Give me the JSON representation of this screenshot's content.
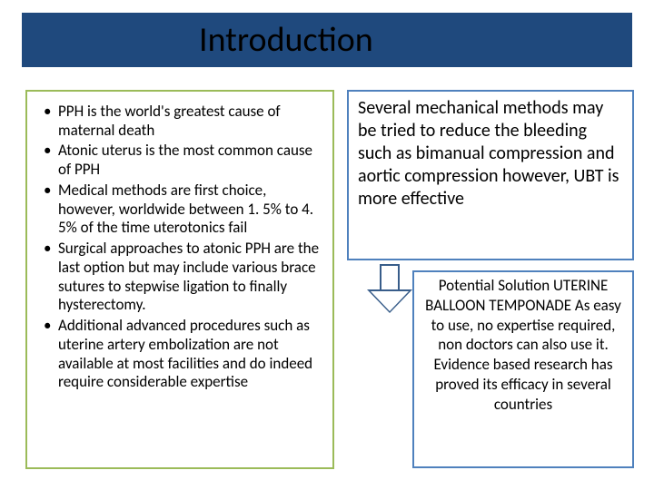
{
  "title": "Introduction",
  "left_bullets": [
    "PPH is the world's greatest cause of maternal death",
    "Atonic uterus is the most common cause of PPH",
    "Medical methods are first choice, however, worldwide between 1. 5% to 4. 5% of the time uterotonics fail",
    "Surgical approaches to atonic PPH are the last option but may include various brace sutures to stepwise ligation to finally hysterectomy.",
    "Additional advanced procedures such as uterine artery embolization are not available at most facilities and do indeed require considerable expertise"
  ],
  "right_top": "Several mechanical methods may be tried to reduce the bleeding such as bimanual compression and aortic compression however, UBT is more effective",
  "right_bottom": "Potential Solution UTERINE BALLOON TEMPONADE\nAs  easy to use, no expertise required,  non doctors can also use it. Evidence based research has  proved its efficacy in several countries",
  "colors": {
    "title_bg": "#1f497d",
    "left_border": "#9bbb59",
    "right_border": "#4f81bd",
    "arrow_border": "#385d8a"
  },
  "fonts": {
    "title_size": 38,
    "bullet_size": 17,
    "right_top_size": 20,
    "right_bottom_size": 17
  }
}
